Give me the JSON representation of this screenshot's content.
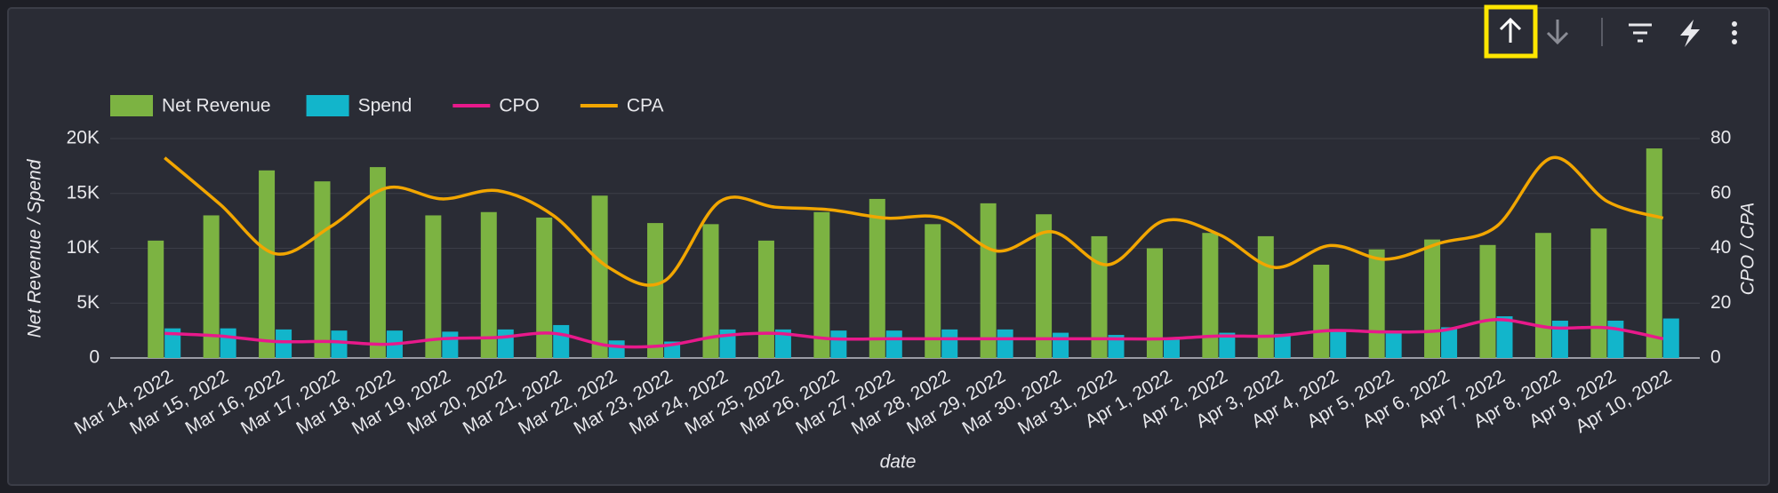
{
  "chart_data": {
    "type": "bar",
    "x_label": "date",
    "y_label": "Net Revenue / Spend",
    "y2_label": "CPO / CPA",
    "categories": [
      "Mar 14, 2022",
      "Mar 15, 2022",
      "Mar 16, 2022",
      "Mar 17, 2022",
      "Mar 18, 2022",
      "Mar 19, 2022",
      "Mar 20, 2022",
      "Mar 21, 2022",
      "Mar 22, 2022",
      "Mar 23, 2022",
      "Mar 24, 2022",
      "Mar 25, 2022",
      "Mar 26, 2022",
      "Mar 27, 2022",
      "Mar 28, 2022",
      "Mar 29, 2022",
      "Mar 30, 2022",
      "Mar 31, 2022",
      "Apr 1, 2022",
      "Apr 2, 2022",
      "Apr 3, 2022",
      "Apr 4, 2022",
      "Apr 5, 2022",
      "Apr 6, 2022",
      "Apr 7, 2022",
      "Apr 8, 2022",
      "Apr 9, 2022",
      "Apr 10, 2022"
    ],
    "series": [
      {
        "name": "Net Revenue",
        "type": "bar",
        "color": "#7cb342",
        "values": [
          10700,
          13000,
          17100,
          16100,
          17400,
          13000,
          13300,
          12800,
          14800,
          12300,
          12200,
          10700,
          13300,
          14500,
          12200,
          14100,
          13100,
          11100,
          10000,
          11400,
          11100,
          8500,
          9900,
          10800,
          10300,
          11400,
          11800,
          19100
        ]
      },
      {
        "name": "Spend",
        "type": "bar",
        "color": "#12b5cb",
        "values": [
          2700,
          2700,
          2600,
          2500,
          2500,
          2400,
          2600,
          3000,
          1600,
          1500,
          2600,
          2600,
          2500,
          2500,
          2600,
          2600,
          2300,
          2100,
          1800,
          2300,
          2200,
          2500,
          2300,
          2800,
          3800,
          3400,
          3400,
          3600
        ]
      },
      {
        "name": "CPO",
        "type": "line",
        "axis": "y2",
        "color": "#e8198b",
        "values": [
          9,
          8,
          6,
          6,
          5,
          7,
          7.5,
          9,
          4.5,
          4.5,
          8,
          9,
          7,
          7,
          7,
          7,
          7,
          7,
          7,
          8,
          8,
          10,
          9.5,
          10,
          14,
          11,
          11,
          7
        ]
      },
      {
        "name": "CPA",
        "type": "line",
        "axis": "y2",
        "color": "#f2a600",
        "values": [
          73,
          56,
          38,
          48,
          62,
          58,
          61,
          52,
          33,
          28,
          57,
          55,
          54,
          51,
          51,
          39,
          46,
          34,
          50,
          45,
          33,
          41,
          36,
          42,
          48,
          73,
          57,
          51
        ]
      }
    ],
    "ylim": [
      0,
      20000
    ],
    "yticks": [
      0,
      {
        "value": 5000,
        "label": "5K"
      },
      {
        "value": 10000,
        "label": "10K"
      },
      {
        "value": 15000,
        "label": "15K"
      },
      {
        "value": 20000,
        "label": "20K"
      }
    ],
    "y2lim": [
      0,
      80
    ],
    "y2ticks": [
      0,
      20,
      40,
      60,
      80
    ],
    "grid": true,
    "legend": "top-left"
  }
}
